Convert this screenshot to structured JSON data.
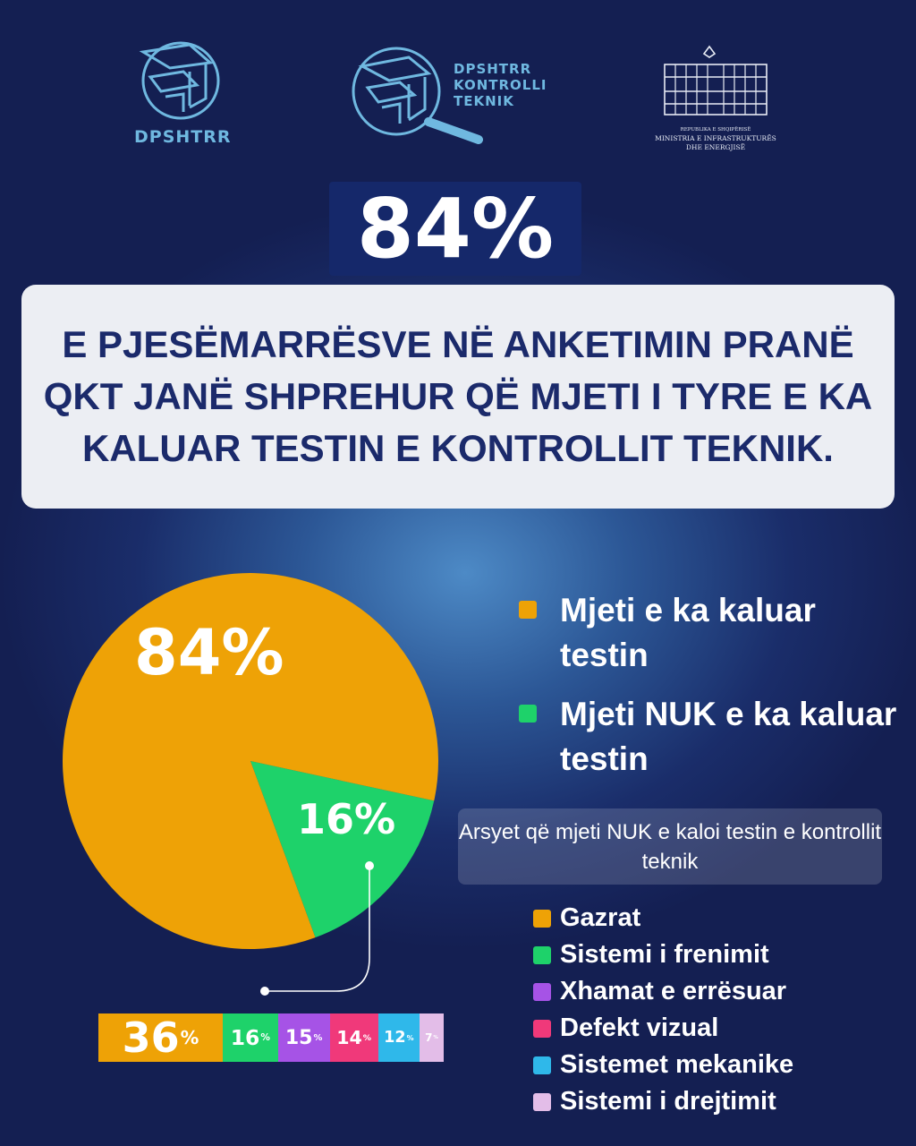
{
  "logos": {
    "dpshtrr": {
      "text": "DPSHTRR"
    },
    "kontrolli": {
      "lines": [
        "DPSHTRR",
        "KONTROLLI",
        "TEKNIK"
      ]
    },
    "ministria": {
      "lines": [
        "REPUBLIKA E SHQIPËRISË",
        "MINISTRIA E INFRASTRUKTURËS",
        "DHE ENERGJISË"
      ]
    }
  },
  "headline": {
    "percentage": "84%",
    "statement": "E PJESËMARRËSVE NË ANKETIMIN PRANË QKT JANË SHPREHUR QË MJETI I TYRE  E KA KALUAR TESTIN E KONTROLLIT TEKNIK."
  },
  "colors": {
    "orange": "#eea206",
    "green": "#1ed26a",
    "purple": "#a653e6",
    "pink": "#f0397a",
    "blue": "#2fb8ea",
    "lilac": "#e3bde8"
  },
  "chart_data": [
    {
      "type": "pie",
      "values": [
        84,
        16
      ],
      "labels": [
        "84%",
        "16%"
      ],
      "colors": [
        "#eea206",
        "#1ed26a"
      ],
      "legend": [
        "Mjeti e ka kaluar testin",
        "Mjeti NUK e ka kaluar testin"
      ]
    },
    {
      "type": "bar",
      "title": "Arsyet që mjeti NUK e kaloi testin e kontrollit teknik",
      "categories": [
        "Gazrat",
        "Sistemi i frenimit",
        "Xhamat e errësuar",
        "Defekt vizual",
        "Sistemet mekanike",
        "Sistemi i drejtimit"
      ],
      "values": [
        36,
        16,
        15,
        14,
        12,
        7
      ],
      "colors": [
        "#eea206",
        "#1ed26a",
        "#a653e6",
        "#f0397a",
        "#2fb8ea",
        "#e3bde8"
      ]
    }
  ]
}
